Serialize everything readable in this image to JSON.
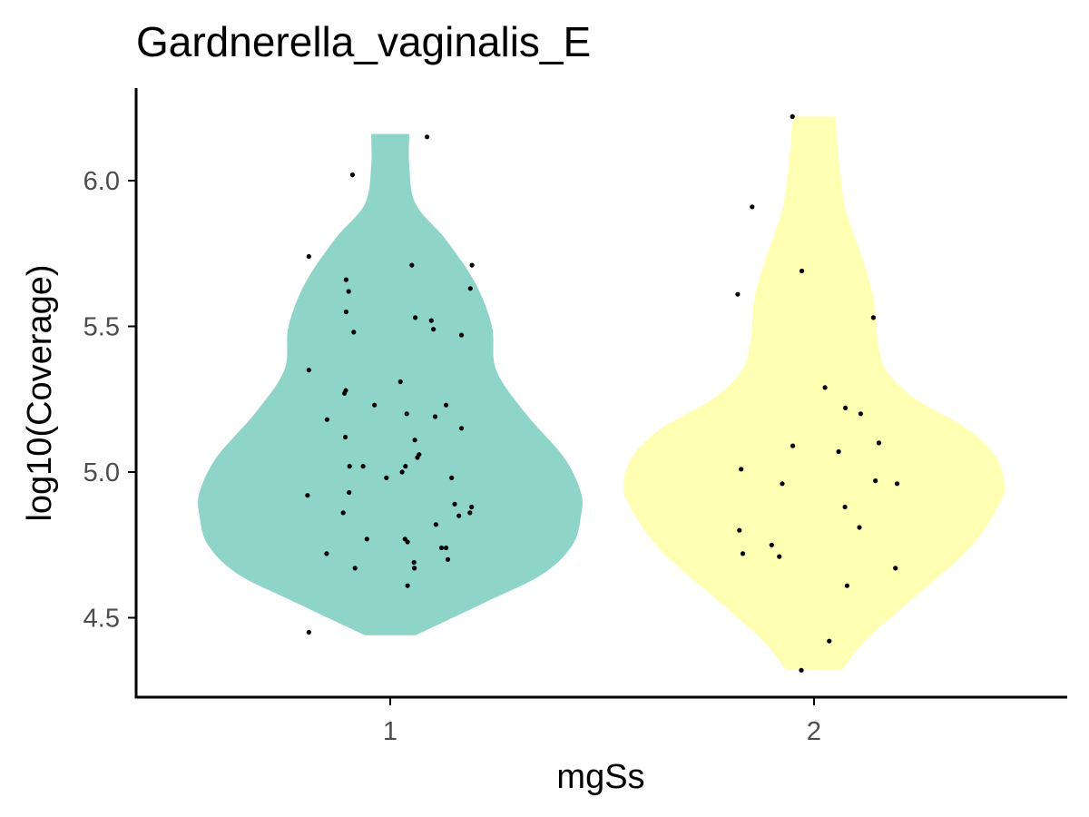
{
  "chart_data": {
    "type": "violin",
    "title": "Gardnerella_vaginalis_E",
    "xlabel": "mgSs",
    "ylabel": "log10(Coverage)",
    "categories": [
      "1",
      "2"
    ],
    "ylim": [
      4.25,
      6.28
    ],
    "yticks": [
      4.5,
      5.0,
      5.5,
      6.0
    ],
    "ytick_labels": [
      "4.5",
      "5.0",
      "5.5",
      "6.0"
    ],
    "grid": false,
    "legend": "none",
    "colors": {
      "1": "#8FD4C8",
      "2": "#FFFFB3",
      "points": "#000000"
    },
    "groups": [
      {
        "name": "1",
        "range": [
          4.44,
          6.16
        ],
        "violin": [
          {
            "y": 4.44,
            "hw": 0.06
          },
          {
            "y": 4.55,
            "hw": 0.22
          },
          {
            "y": 4.65,
            "hw": 0.36
          },
          {
            "y": 4.75,
            "hw": 0.43
          },
          {
            "y": 4.85,
            "hw": 0.45
          },
          {
            "y": 4.93,
            "hw": 0.45
          },
          {
            "y": 5.05,
            "hw": 0.41
          },
          {
            "y": 5.2,
            "hw": 0.32
          },
          {
            "y": 5.35,
            "hw": 0.25
          },
          {
            "y": 5.5,
            "hw": 0.24
          },
          {
            "y": 5.65,
            "hw": 0.2
          },
          {
            "y": 5.8,
            "hw": 0.13
          },
          {
            "y": 5.92,
            "hw": 0.06
          },
          {
            "y": 6.05,
            "hw": 0.045
          },
          {
            "y": 6.16,
            "hw": 0.045
          }
        ],
        "points": [
          {
            "x": 1.087,
            "y": 6.15
          },
          {
            "x": 0.911,
            "y": 6.02
          },
          {
            "x": 0.808,
            "y": 5.74
          },
          {
            "x": 1.051,
            "y": 5.71
          },
          {
            "x": 1.193,
            "y": 5.71
          },
          {
            "x": 0.896,
            "y": 5.66
          },
          {
            "x": 0.902,
            "y": 5.62
          },
          {
            "x": 1.189,
            "y": 5.63
          },
          {
            "x": 0.896,
            "y": 5.55
          },
          {
            "x": 1.059,
            "y": 5.53
          },
          {
            "x": 1.097,
            "y": 5.52
          },
          {
            "x": 1.102,
            "y": 5.49
          },
          {
            "x": 0.914,
            "y": 5.48
          },
          {
            "x": 1.168,
            "y": 5.47
          },
          {
            "x": 0.808,
            "y": 5.35
          },
          {
            "x": 1.024,
            "y": 5.31
          },
          {
            "x": 0.895,
            "y": 5.28
          },
          {
            "x": 0.892,
            "y": 5.27
          },
          {
            "x": 0.963,
            "y": 5.23
          },
          {
            "x": 1.132,
            "y": 5.23
          },
          {
            "x": 1.039,
            "y": 5.2
          },
          {
            "x": 1.106,
            "y": 5.19
          },
          {
            "x": 0.851,
            "y": 5.18
          },
          {
            "x": 1.168,
            "y": 5.15
          },
          {
            "x": 0.894,
            "y": 5.12
          },
          {
            "x": 1.058,
            "y": 5.11
          },
          {
            "x": 1.068,
            "y": 5.06
          },
          {
            "x": 1.064,
            "y": 5.05
          },
          {
            "x": 0.904,
            "y": 5.02
          },
          {
            "x": 0.936,
            "y": 5.02
          },
          {
            "x": 1.036,
            "y": 5.02
          },
          {
            "x": 1.028,
            "y": 5.0
          },
          {
            "x": 0.991,
            "y": 4.98
          },
          {
            "x": 1.145,
            "y": 4.98
          },
          {
            "x": 0.903,
            "y": 4.93
          },
          {
            "x": 0.805,
            "y": 4.92
          },
          {
            "x": 1.152,
            "y": 4.89
          },
          {
            "x": 1.192,
            "y": 4.88
          },
          {
            "x": 1.188,
            "y": 4.86
          },
          {
            "x": 0.889,
            "y": 4.86
          },
          {
            "x": 1.162,
            "y": 4.85
          },
          {
            "x": 1.108,
            "y": 4.82
          },
          {
            "x": 0.945,
            "y": 4.77
          },
          {
            "x": 1.035,
            "y": 4.77
          },
          {
            "x": 1.041,
            "y": 4.76
          },
          {
            "x": 1.121,
            "y": 4.74
          },
          {
            "x": 1.132,
            "y": 4.74
          },
          {
            "x": 0.85,
            "y": 4.72
          },
          {
            "x": 1.056,
            "y": 4.69
          },
          {
            "x": 1.136,
            "y": 4.7
          },
          {
            "x": 1.057,
            "y": 4.67
          },
          {
            "x": 0.917,
            "y": 4.67
          },
          {
            "x": 1.041,
            "y": 4.61
          },
          {
            "x": 0.808,
            "y": 4.45
          }
        ]
      },
      {
        "name": "2",
        "range": [
          4.32,
          6.22
        ],
        "violin": [
          {
            "y": 4.32,
            "hw": 0.065
          },
          {
            "y": 4.42,
            "hw": 0.12
          },
          {
            "y": 4.55,
            "hw": 0.22
          },
          {
            "y": 4.7,
            "hw": 0.34
          },
          {
            "y": 4.8,
            "hw": 0.4
          },
          {
            "y": 4.9,
            "hw": 0.44
          },
          {
            "y": 4.95,
            "hw": 0.45
          },
          {
            "y": 5.05,
            "hw": 0.43
          },
          {
            "y": 5.15,
            "hw": 0.36
          },
          {
            "y": 5.25,
            "hw": 0.24
          },
          {
            "y": 5.35,
            "hw": 0.17
          },
          {
            "y": 5.45,
            "hw": 0.15
          },
          {
            "y": 5.6,
            "hw": 0.14
          },
          {
            "y": 5.75,
            "hw": 0.11
          },
          {
            "y": 5.9,
            "hw": 0.075
          },
          {
            "y": 6.05,
            "hw": 0.06
          },
          {
            "y": 6.22,
            "hw": 0.05
          }
        ],
        "points": [
          {
            "x": 1.949,
            "y": 6.22
          },
          {
            "x": 1.854,
            "y": 5.91
          },
          {
            "x": 1.971,
            "y": 5.69
          },
          {
            "x": 1.82,
            "y": 5.61
          },
          {
            "x": 2.14,
            "y": 5.53
          },
          {
            "x": 2.026,
            "y": 5.29
          },
          {
            "x": 2.074,
            "y": 5.22
          },
          {
            "x": 2.11,
            "y": 5.2
          },
          {
            "x": 1.95,
            "y": 5.09
          },
          {
            "x": 2.153,
            "y": 5.1
          },
          {
            "x": 2.058,
            "y": 5.07
          },
          {
            "x": 1.828,
            "y": 5.01
          },
          {
            "x": 2.145,
            "y": 4.97
          },
          {
            "x": 2.196,
            "y": 4.96
          },
          {
            "x": 1.925,
            "y": 4.96
          },
          {
            "x": 2.073,
            "y": 4.88
          },
          {
            "x": 2.107,
            "y": 4.81
          },
          {
            "x": 1.824,
            "y": 4.8
          },
          {
            "x": 1.9,
            "y": 4.75
          },
          {
            "x": 1.832,
            "y": 4.72
          },
          {
            "x": 1.918,
            "y": 4.71
          },
          {
            "x": 2.192,
            "y": 4.67
          },
          {
            "x": 2.078,
            "y": 4.61
          },
          {
            "x": 2.036,
            "y": 4.42
          },
          {
            "x": 1.97,
            "y": 4.32
          }
        ]
      }
    ]
  }
}
